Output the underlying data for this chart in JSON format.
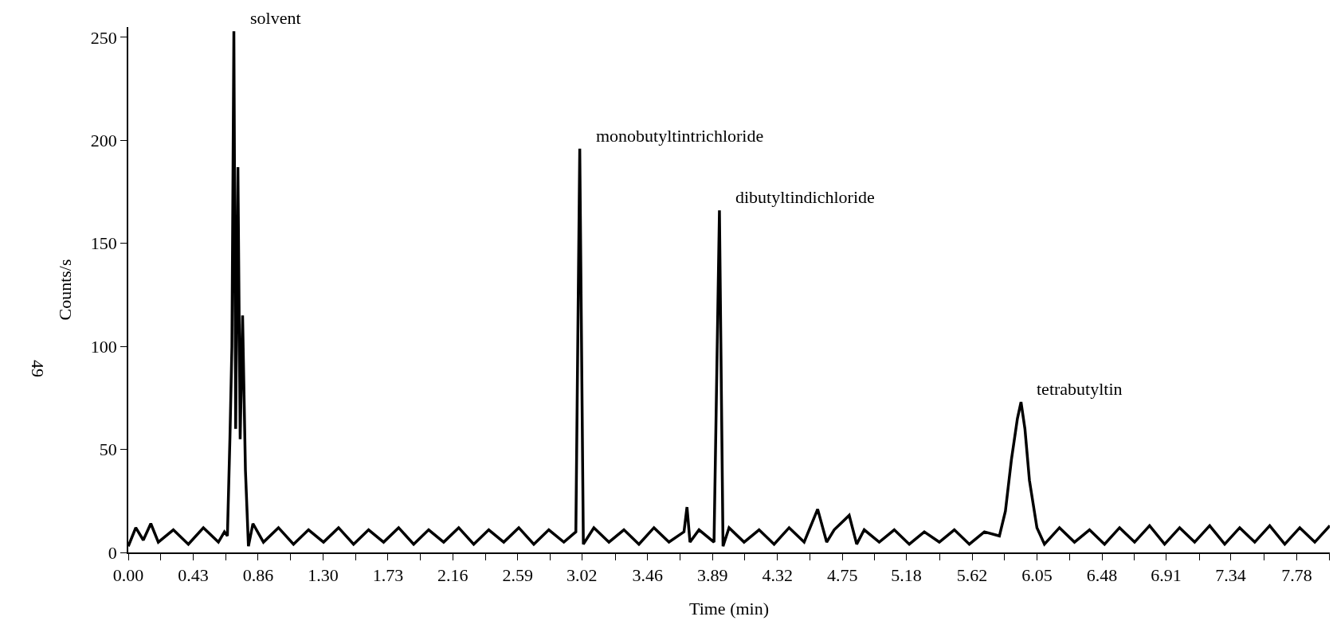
{
  "chart_data": {
    "type": "line",
    "xlabel": "Time (min)",
    "ylabel": "Counts/s",
    "grid": false,
    "marker": "none",
    "line_style": "solid",
    "xlim": [
      0,
      8.0
    ],
    "ylim": [
      0,
      255
    ],
    "xticks": [
      {
        "value": 0,
        "label": "0.00"
      },
      {
        "value": 0.2161,
        "label": null
      },
      {
        "value": 0.4322,
        "label": "0.43"
      },
      {
        "value": 0.6483,
        "label": null
      },
      {
        "value": 0.8644,
        "label": "0.86"
      },
      {
        "value": 1.0805,
        "label": null
      },
      {
        "value": 1.2966,
        "label": "1.30"
      },
      {
        "value": 1.5127,
        "label": null
      },
      {
        "value": 1.7288,
        "label": "1.73"
      },
      {
        "value": 1.9449,
        "label": null
      },
      {
        "value": 2.161,
        "label": "2.16"
      },
      {
        "value": 2.3771,
        "label": null
      },
      {
        "value": 2.5932,
        "label": "2.59"
      },
      {
        "value": 2.8093,
        "label": null
      },
      {
        "value": 3.02,
        "label": "3.02"
      },
      {
        "value": 3.2415,
        "label": null
      },
      {
        "value": 3.4576,
        "label": "3.46"
      },
      {
        "value": 3.6737,
        "label": null
      },
      {
        "value": 3.8898,
        "label": "3.89"
      },
      {
        "value": 4.1059,
        "label": null
      },
      {
        "value": 4.322,
        "label": "4.32"
      },
      {
        "value": 4.5381,
        "label": null
      },
      {
        "value": 4.7542,
        "label": "4.75"
      },
      {
        "value": 4.9703,
        "label": null
      },
      {
        "value": 5.18,
        "label": "5.18"
      },
      {
        "value": 5.4025,
        "label": null
      },
      {
        "value": 5.6186,
        "label": "5.62"
      },
      {
        "value": 5.8347,
        "label": null
      },
      {
        "value": 6.0508,
        "label": "6.05"
      },
      {
        "value": 6.2669,
        "label": null
      },
      {
        "value": 6.483,
        "label": "6.48"
      },
      {
        "value": 6.6991,
        "label": null
      },
      {
        "value": 6.91,
        "label": "6.91"
      },
      {
        "value": 7.1313,
        "label": null
      },
      {
        "value": 7.34,
        "label": "7.34"
      },
      {
        "value": 7.5635,
        "label": null
      },
      {
        "value": 7.7796,
        "label": "7.78"
      },
      {
        "value": 7.9957,
        "label": null
      }
    ],
    "yticks": [
      0,
      50,
      100,
      150,
      200,
      250
    ],
    "x": [
      0,
      0.05,
      0.1,
      0.15,
      0.2,
      0.3,
      0.4,
      0.5,
      0.6,
      0.64,
      0.66,
      0.677,
      0.69,
      0.703,
      0.715,
      0.73,
      0.745,
      0.761,
      0.78,
      0.8,
      0.83,
      0.9,
      1.0,
      1.1,
      1.2,
      1.3,
      1.4,
      1.5,
      1.6,
      1.7,
      1.8,
      1.9,
      2.0,
      2.1,
      2.2,
      2.3,
      2.4,
      2.5,
      2.6,
      2.7,
      2.8,
      2.9,
      2.98,
      3.006,
      3.03,
      3.1,
      3.2,
      3.3,
      3.4,
      3.5,
      3.6,
      3.7,
      3.72,
      3.74,
      3.8,
      3.9,
      3.936,
      3.96,
      4.0,
      4.1,
      4.2,
      4.3,
      4.4,
      4.5,
      4.59,
      4.65,
      4.7,
      4.8,
      4.85,
      4.9,
      5.0,
      5.1,
      5.2,
      5.3,
      5.4,
      5.5,
      5.6,
      5.7,
      5.8,
      5.84,
      5.88,
      5.92,
      5.944,
      5.97,
      6.0,
      6.05,
      6.1,
      6.2,
      6.3,
      6.4,
      6.5,
      6.6,
      6.7,
      6.8,
      6.9,
      7.0,
      7.1,
      7.2,
      7.3,
      7.4,
      7.5,
      7.6,
      7.7,
      7.8,
      7.9,
      8.0
    ],
    "series": [
      {
        "color": "#000000",
        "values": [
          3,
          12,
          6,
          14,
          5,
          11,
          4,
          12,
          5,
          10,
          8,
          56,
          100,
          253,
          60,
          187,
          55,
          115,
          40,
          3,
          14,
          5,
          12,
          4,
          11,
          5,
          12,
          4,
          11,
          5,
          12,
          4,
          11,
          5,
          12,
          4,
          11,
          5,
          12,
          4,
          11,
          5,
          10,
          196,
          4,
          12,
          5,
          11,
          4,
          12,
          5,
          10,
          22,
          5,
          11,
          5,
          166,
          3,
          12,
          5,
          11,
          4,
          12,
          5,
          21,
          5,
          11,
          18,
          4,
          11,
          5,
          11,
          4,
          10,
          5,
          11,
          4,
          10,
          8,
          20,
          45,
          65,
          73,
          60,
          35,
          12,
          4,
          12,
          5,
          11,
          4,
          12,
          5,
          13,
          4,
          12,
          5,
          13,
          4,
          12,
          5,
          13,
          4,
          12,
          5,
          13
        ]
      }
    ],
    "annotations": [
      {
        "text": "solvent",
        "x": 0.703,
        "y": 253
      },
      {
        "text": "monobutyltintrichloride",
        "x": 3.006,
        "y": 196
      },
      {
        "text": "dibutyltindichloride",
        "x": 3.936,
        "y": 166
      },
      {
        "text": "tetrabutyltin",
        "x": 5.944,
        "y": 73
      },
      "49"
    ]
  }
}
